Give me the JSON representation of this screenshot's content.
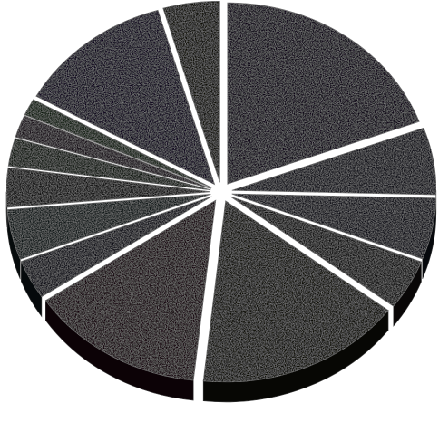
{
  "chart_data": {
    "type": "pie",
    "style": "3d-exploded",
    "title": "",
    "legend": "none",
    "slices": [
      {
        "value": 19.5,
        "color": "#0d0418"
      },
      {
        "value": 6.0,
        "color": "#0d0c12"
      },
      {
        "value": 5.5,
        "color": "#0a0d14"
      },
      {
        "value": 4.5,
        "color": "#0f0b0b"
      },
      {
        "value": 16.5,
        "color": "#0b0c06"
      },
      {
        "value": 14.0,
        "color": "#14040a"
      },
      {
        "value": 3.5,
        "color": "#090f12"
      },
      {
        "value": 4.5,
        "color": "#0a1214"
      },
      {
        "value": 3.5,
        "color": "#0f0d0a"
      },
      {
        "value": 2.5,
        "color": "#0d1610"
      },
      {
        "value": 2.0,
        "color": "#160d12"
      },
      {
        "value": 1.5,
        "color": "#0f1a0e"
      },
      {
        "value": 12.5,
        "color": "#10061a"
      },
      {
        "value": 4.5,
        "color": "#0a0e06"
      }
    ]
  }
}
